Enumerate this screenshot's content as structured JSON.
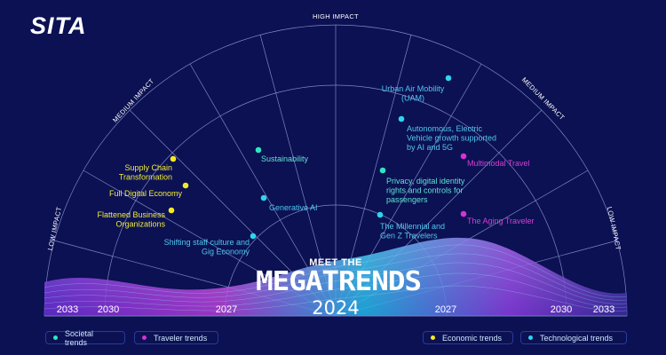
{
  "brand": "SITA",
  "colors": {
    "background": "#0b1152",
    "grid": "#7f86c4",
    "societal": "#2ee6c1",
    "traveler": "#d633d6",
    "economic": "#f4ea22",
    "technological": "#2fd4ee",
    "societal_text": "#5fe3d4",
    "technological_text": "#52c6ef",
    "traveler_text": "#d83ed6",
    "economic_text": "#f2ec3a"
  },
  "impact_labels": {
    "high": "HIGH IMPACT",
    "medium_left": "MEDIUM IMPACT",
    "medium_right": "MEDIUM IMPACT",
    "low_left": "LOW IMPACT",
    "low_right": "LOW IMPACT"
  },
  "years": {
    "left_outer": "2033",
    "left_mid": "2030",
    "left_inner": "2027",
    "right_inner": "2027",
    "right_mid": "2030",
    "right_outer": "2033"
  },
  "headline": {
    "pre": "MEET THE",
    "main": "MEGATRENDS",
    "year": "2024"
  },
  "trends": [
    {
      "label": "Urban Air Mobility\n(UAM)",
      "category": "technological",
      "color": "#2fd4ee"
    },
    {
      "label": "Autonomous, Electric\nVehicle growth supported\nby AI and 5G",
      "category": "technological",
      "color": "#2fd4ee"
    },
    {
      "label": "Multimodal Travel",
      "category": "traveler",
      "color": "#d633d6"
    },
    {
      "label": "Privacy, digital identity\nrights and controls for\npassengers",
      "category": "societal",
      "color": "#2ee6c1"
    },
    {
      "label": "The Aging Traveler",
      "category": "traveler",
      "color": "#d633d6"
    },
    {
      "label": "The Millennial and\nGen Z Travelers",
      "category": "technological",
      "color": "#2fd4ee"
    },
    {
      "label": "Sustainability",
      "category": "societal",
      "color": "#2ee6c1"
    },
    {
      "label": "Generative AI",
      "category": "technological",
      "color": "#2fd4ee"
    },
    {
      "label": "Shifting staff culture and\nGig Economy",
      "category": "technological",
      "color": "#2fd4ee"
    },
    {
      "label": "Supply Chain\nTransformation",
      "category": "economic",
      "color": "#f4ea22"
    },
    {
      "label": "Full Digital Economy",
      "category": "economic",
      "color": "#f4ea22"
    },
    {
      "label": "Flattened Business\nOrganizations",
      "category": "economic",
      "color": "#f4ea22"
    }
  ],
  "legend": [
    {
      "label": "Societal trends",
      "color": "#2ee6c1"
    },
    {
      "label": "Traveler trends",
      "color": "#d633d6"
    },
    {
      "label": "Economic trends",
      "color": "#f4ea22"
    },
    {
      "label": "Technological trends",
      "color": "#2fd4ee"
    }
  ]
}
